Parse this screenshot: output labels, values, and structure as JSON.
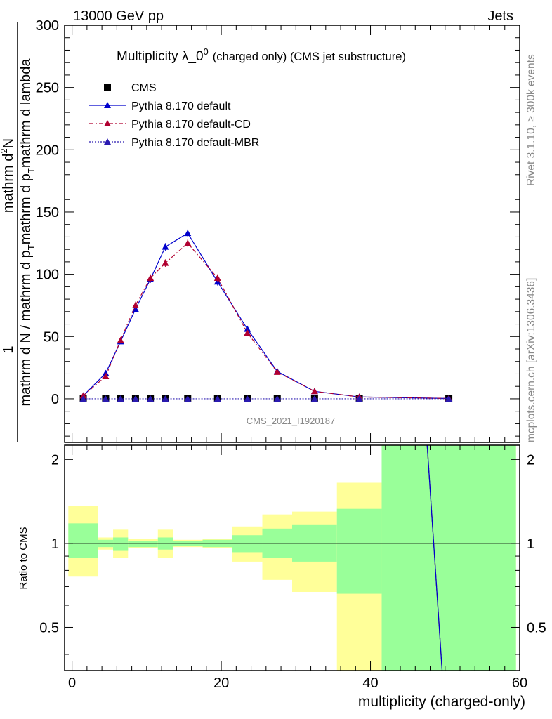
{
  "header": {
    "left": "13000 GeV pp",
    "right": "Jets"
  },
  "side_labels": {
    "rivet": "Rivet 3.1.10, ≥ 300k events",
    "mcplots": "mcplots.cern.ch [arXiv:1306.3436]"
  },
  "chart_data": [
    {
      "type": "line",
      "title_main": "Multiplicity λ_0",
      "title_sup": "0",
      "title_suffix": "(charged only) (CMS jet substructure)",
      "watermark": "CMS_2021_I1920187",
      "ylabel_numerator": "1",
      "ylabel_top_line": "mathrm d",
      "ylabel_top_sup": "2",
      "ylabel_top_rest": "N",
      "ylabel_denominator": "mathrm d N / mathrm d p_T mathrm d p_T mathrm d lambda",
      "ylabel_parts": [
        "mathrm d N / mathrm d p",
        "T",
        "mathrm d p",
        "T",
        "mathrm d lambda"
      ],
      "ylim": [
        -35,
        300
      ],
      "xlim": [
        -1,
        60
      ],
      "yticks": [
        0,
        50,
        100,
        150,
        200,
        250,
        300
      ],
      "legend": [
        "CMS",
        "Pythia 8.170 default",
        "Pythia 8.170 default-CD",
        "Pythia 8.170 default-MBR"
      ],
      "series": [
        {
          "name": "CMS",
          "style": "square",
          "color": "#000000",
          "x": [
            1.5,
            4.5,
            6.5,
            8.5,
            10.5,
            12.5,
            15.5,
            19.5,
            23.5,
            27.5,
            32.5,
            38.5,
            50.5
          ],
          "values": [
            0,
            0,
            0,
            0,
            0,
            0,
            0,
            0,
            0,
            0,
            0,
            0,
            0
          ]
        },
        {
          "name": "Pythia 8.170 default",
          "style": "solid",
          "color": "#0000cc",
          "x": [
            1.5,
            4.5,
            6.5,
            8.5,
            10.5,
            12.5,
            15.5,
            19.5,
            23.5,
            27.5,
            32.5,
            38.5,
            50.5
          ],
          "values": [
            2.5,
            20.5,
            46,
            72,
            96,
            122,
            133,
            94,
            56,
            22,
            6,
            1.5,
            0.3
          ],
          "errors": [
            0.5,
            1.5,
            2,
            2.5,
            3,
            3,
            3,
            3,
            2,
            1,
            0.5,
            0.2,
            0.1
          ]
        },
        {
          "name": "Pythia 8.170 default-CD",
          "style": "dashdot",
          "color": "#b00030",
          "x": [
            1.5,
            4.5,
            6.5,
            8.5,
            10.5,
            12.5,
            15.5,
            19.5,
            23.5,
            27.5,
            32.5,
            38.5,
            50.5
          ],
          "values": [
            2.5,
            18,
            47,
            75,
            97,
            109,
            125,
            97,
            53,
            21.5,
            6,
            1.5,
            0.3
          ],
          "errors": [
            0.5,
            1.5,
            2,
            3,
            3,
            3,
            3,
            3,
            2,
            1,
            0.5,
            0.2,
            0.1
          ]
        },
        {
          "name": "Pythia 8.170 default-MBR",
          "style": "dotted",
          "color": "#2a1ab0",
          "x": [
            1.5,
            4.5,
            6.5,
            8.5,
            10.5,
            12.5,
            15.5,
            19.5,
            23.5,
            27.5,
            32.5,
            38.5,
            50.5
          ],
          "values": [
            0,
            0,
            0,
            0,
            0,
            0,
            0,
            0,
            0,
            0,
            0,
            0,
            0
          ]
        }
      ]
    },
    {
      "type": "area",
      "ylabel": "Ratio to CMS",
      "xlabel": "multiplicity (charged-only)",
      "ylim": [
        0.35,
        2.25
      ],
      "xticks": [
        0,
        20,
        40,
        60
      ],
      "yticks": [
        0.5,
        1,
        2
      ],
      "bands": [
        {
          "x0": -0.5,
          "x1": 3.5,
          "inner": [
            0.89,
            1.18
          ],
          "outer": [
            0.76,
            1.36
          ]
        },
        {
          "x0": 3.5,
          "x1": 5.5,
          "inner": [
            0.97,
            1.03
          ],
          "outer": [
            0.95,
            1.05
          ]
        },
        {
          "x0": 5.5,
          "x1": 7.5,
          "inner": [
            0.94,
            1.05
          ],
          "outer": [
            0.89,
            1.12
          ]
        },
        {
          "x0": 7.5,
          "x1": 9.5,
          "inner": [
            0.97,
            1.02
          ],
          "outer": [
            0.96,
            1.04
          ]
        },
        {
          "x0": 9.5,
          "x1": 11.5,
          "inner": [
            0.97,
            1.02
          ],
          "outer": [
            0.96,
            1.04
          ]
        },
        {
          "x0": 11.5,
          "x1": 13.5,
          "inner": [
            0.95,
            1.05
          ],
          "outer": [
            0.89,
            1.12
          ]
        },
        {
          "x0": 13.5,
          "x1": 17.5,
          "inner": [
            0.98,
            1.02
          ],
          "outer": [
            0.97,
            1.03
          ]
        },
        {
          "x0": 17.5,
          "x1": 21.5,
          "inner": [
            0.97,
            1.03
          ],
          "outer": [
            0.96,
            1.04
          ]
        },
        {
          "x0": 21.5,
          "x1": 25.5,
          "inner": [
            0.93,
            1.07
          ],
          "outer": [
            0.86,
            1.15
          ]
        },
        {
          "x0": 25.5,
          "x1": 29.5,
          "inner": [
            0.89,
            1.13
          ],
          "outer": [
            0.74,
            1.27
          ]
        },
        {
          "x0": 29.5,
          "x1": 35.5,
          "inner": [
            0.86,
            1.17
          ],
          "outer": [
            0.67,
            1.3
          ]
        },
        {
          "x0": 35.5,
          "x1": 41.5,
          "inner": [
            0.66,
            1.33
          ],
          "outer": [
            0.35,
            1.65
          ]
        },
        {
          "x0": 41.5,
          "x1": 59.5,
          "inner": [
            0.35,
            2.25
          ],
          "outer": [
            0.35,
            2.25
          ]
        }
      ],
      "ratio_line": {
        "x": [
          47.6,
          49.6
        ],
        "values": [
          2.25,
          0.35
        ]
      }
    }
  ]
}
